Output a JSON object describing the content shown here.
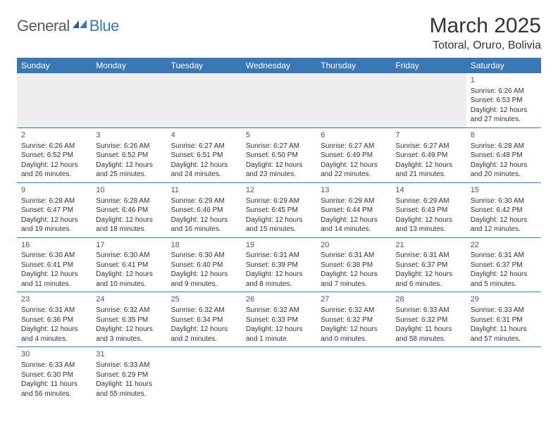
{
  "logo": {
    "general": "General",
    "blue": "Blue"
  },
  "title": "March 2025",
  "location": "Totoral, Oruro, Bolivia",
  "colors": {
    "header_bg": "#3a78b5",
    "header_text": "#ffffff",
    "rule": "#3a78b5",
    "text": "#333333",
    "empty_bg": "#eeeeee"
  },
  "dayHeaders": [
    "Sunday",
    "Monday",
    "Tuesday",
    "Wednesday",
    "Thursday",
    "Friday",
    "Saturday"
  ],
  "weeks": [
    [
      null,
      null,
      null,
      null,
      null,
      null,
      {
        "n": "1",
        "sr": "Sunrise: 6:26 AM",
        "ss": "Sunset: 6:53 PM",
        "dl": "Daylight: 12 hours and 27 minutes."
      }
    ],
    [
      {
        "n": "2",
        "sr": "Sunrise: 6:26 AM",
        "ss": "Sunset: 6:52 PM",
        "dl": "Daylight: 12 hours and 26 minutes."
      },
      {
        "n": "3",
        "sr": "Sunrise: 6:26 AM",
        "ss": "Sunset: 6:52 PM",
        "dl": "Daylight: 12 hours and 25 minutes."
      },
      {
        "n": "4",
        "sr": "Sunrise: 6:27 AM",
        "ss": "Sunset: 6:51 PM",
        "dl": "Daylight: 12 hours and 24 minutes."
      },
      {
        "n": "5",
        "sr": "Sunrise: 6:27 AM",
        "ss": "Sunset: 6:50 PM",
        "dl": "Daylight: 12 hours and 23 minutes."
      },
      {
        "n": "6",
        "sr": "Sunrise: 6:27 AM",
        "ss": "Sunset: 6:49 PM",
        "dl": "Daylight: 12 hours and 22 minutes."
      },
      {
        "n": "7",
        "sr": "Sunrise: 6:27 AM",
        "ss": "Sunset: 6:49 PM",
        "dl": "Daylight: 12 hours and 21 minutes."
      },
      {
        "n": "8",
        "sr": "Sunrise: 6:28 AM",
        "ss": "Sunset: 6:48 PM",
        "dl": "Daylight: 12 hours and 20 minutes."
      }
    ],
    [
      {
        "n": "9",
        "sr": "Sunrise: 6:28 AM",
        "ss": "Sunset: 6:47 PM",
        "dl": "Daylight: 12 hours and 19 minutes."
      },
      {
        "n": "10",
        "sr": "Sunrise: 6:28 AM",
        "ss": "Sunset: 6:46 PM",
        "dl": "Daylight: 12 hours and 18 minutes."
      },
      {
        "n": "11",
        "sr": "Sunrise: 6:29 AM",
        "ss": "Sunset: 6:46 PM",
        "dl": "Daylight: 12 hours and 16 minutes."
      },
      {
        "n": "12",
        "sr": "Sunrise: 6:29 AM",
        "ss": "Sunset: 6:45 PM",
        "dl": "Daylight: 12 hours and 15 minutes."
      },
      {
        "n": "13",
        "sr": "Sunrise: 6:29 AM",
        "ss": "Sunset: 6:44 PM",
        "dl": "Daylight: 12 hours and 14 minutes."
      },
      {
        "n": "14",
        "sr": "Sunrise: 6:29 AM",
        "ss": "Sunset: 6:43 PM",
        "dl": "Daylight: 12 hours and 13 minutes."
      },
      {
        "n": "15",
        "sr": "Sunrise: 6:30 AM",
        "ss": "Sunset: 6:42 PM",
        "dl": "Daylight: 12 hours and 12 minutes."
      }
    ],
    [
      {
        "n": "16",
        "sr": "Sunrise: 6:30 AM",
        "ss": "Sunset: 6:41 PM",
        "dl": "Daylight: 12 hours and 11 minutes."
      },
      {
        "n": "17",
        "sr": "Sunrise: 6:30 AM",
        "ss": "Sunset: 6:41 PM",
        "dl": "Daylight: 12 hours and 10 minutes."
      },
      {
        "n": "18",
        "sr": "Sunrise: 6:30 AM",
        "ss": "Sunset: 6:40 PM",
        "dl": "Daylight: 12 hours and 9 minutes."
      },
      {
        "n": "19",
        "sr": "Sunrise: 6:31 AM",
        "ss": "Sunset: 6:39 PM",
        "dl": "Daylight: 12 hours and 8 minutes."
      },
      {
        "n": "20",
        "sr": "Sunrise: 6:31 AM",
        "ss": "Sunset: 6:38 PM",
        "dl": "Daylight: 12 hours and 7 minutes."
      },
      {
        "n": "21",
        "sr": "Sunrise: 6:31 AM",
        "ss": "Sunset: 6:37 PM",
        "dl": "Daylight: 12 hours and 6 minutes."
      },
      {
        "n": "22",
        "sr": "Sunrise: 6:31 AM",
        "ss": "Sunset: 6:37 PM",
        "dl": "Daylight: 12 hours and 5 minutes."
      }
    ],
    [
      {
        "n": "23",
        "sr": "Sunrise: 6:31 AM",
        "ss": "Sunset: 6:36 PM",
        "dl": "Daylight: 12 hours and 4 minutes."
      },
      {
        "n": "24",
        "sr": "Sunrise: 6:32 AM",
        "ss": "Sunset: 6:35 PM",
        "dl": "Daylight: 12 hours and 3 minutes."
      },
      {
        "n": "25",
        "sr": "Sunrise: 6:32 AM",
        "ss": "Sunset: 6:34 PM",
        "dl": "Daylight: 12 hours and 2 minutes."
      },
      {
        "n": "26",
        "sr": "Sunrise: 6:32 AM",
        "ss": "Sunset: 6:33 PM",
        "dl": "Daylight: 12 hours and 1 minute."
      },
      {
        "n": "27",
        "sr": "Sunrise: 6:32 AM",
        "ss": "Sunset: 6:32 PM",
        "dl": "Daylight: 12 hours and 0 minutes."
      },
      {
        "n": "28",
        "sr": "Sunrise: 6:33 AM",
        "ss": "Sunset: 6:32 PM",
        "dl": "Daylight: 11 hours and 58 minutes."
      },
      {
        "n": "29",
        "sr": "Sunrise: 6:33 AM",
        "ss": "Sunset: 6:31 PM",
        "dl": "Daylight: 11 hours and 57 minutes."
      }
    ],
    [
      {
        "n": "30",
        "sr": "Sunrise: 6:33 AM",
        "ss": "Sunset: 6:30 PM",
        "dl": "Daylight: 11 hours and 56 minutes."
      },
      {
        "n": "31",
        "sr": "Sunrise: 6:33 AM",
        "ss": "Sunset: 6:29 PM",
        "dl": "Daylight: 11 hours and 55 minutes."
      },
      null,
      null,
      null,
      null,
      null
    ]
  ]
}
